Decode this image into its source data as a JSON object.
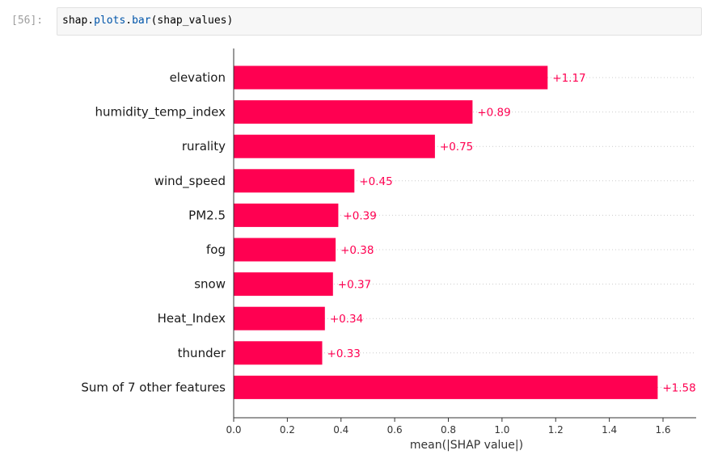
{
  "cell": {
    "prompt": "[56]:",
    "code_prefix": "shap.",
    "code_attr": "plots",
    "code_dot": ".",
    "code_func": "bar",
    "code_args": "(shap_values)"
  },
  "chart_data": {
    "type": "bar",
    "orientation": "horizontal",
    "categories": [
      "elevation",
      "humidity_temp_index",
      "rurality",
      "wind_speed",
      "PM2.5",
      "fog",
      "snow",
      "Heat_Index",
      "thunder",
      "Sum of 7 other features"
    ],
    "values": [
      1.17,
      0.89,
      0.75,
      0.45,
      0.39,
      0.38,
      0.37,
      0.34,
      0.33,
      1.58
    ],
    "value_labels": [
      "+1.17",
      "+0.89",
      "+0.75",
      "+0.45",
      "+0.39",
      "+0.38",
      "+0.37",
      "+0.34",
      "+0.33",
      "+1.58"
    ],
    "xlabel": "mean(|SHAP value|)",
    "xticks": [
      "0.0",
      "0.2",
      "0.4",
      "0.6",
      "0.8",
      "1.0",
      "1.2",
      "1.4",
      "1.6"
    ],
    "xlim": [
      0,
      1.75
    ],
    "bar_color": "#ff0051",
    "grid": "dotted horizontal lines after bars"
  }
}
